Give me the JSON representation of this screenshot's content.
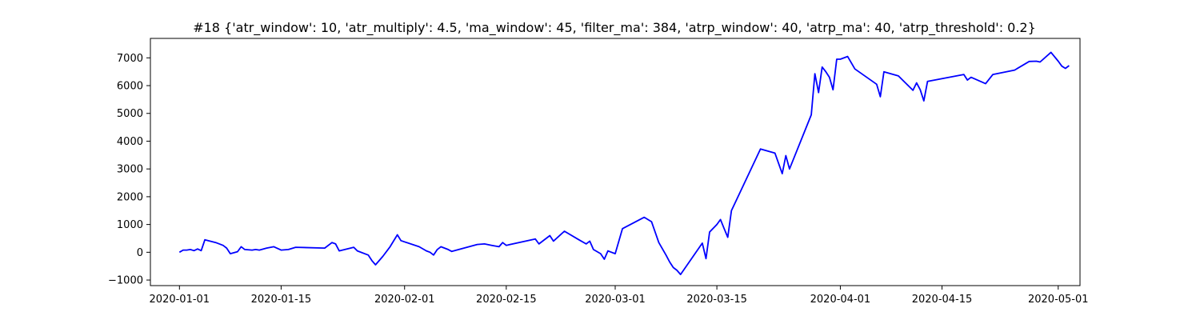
{
  "chart_data": {
    "type": "line",
    "title": "#18 {'atr_window': 10, 'atr_multiply': 4.5, 'ma_window': 45, 'filter_ma': 384, 'atrp_window': 40, 'atrp_ma': 40, 'atrp_threshold': 0.2}",
    "xlabel": "",
    "ylabel": "",
    "xlim": [
      "2019-12-28",
      "2020-05-04"
    ],
    "ylim": [
      -1200,
      7700
    ],
    "x_ticks": [
      "2020-01-01",
      "2020-01-15",
      "2020-02-01",
      "2020-02-15",
      "2020-03-01",
      "2020-03-15",
      "2020-04-01",
      "2020-04-15",
      "2020-05-01"
    ],
    "y_ticks": [
      -1000,
      0,
      1000,
      2000,
      3000,
      4000,
      5000,
      6000,
      7000
    ],
    "grid": false,
    "legend": "none",
    "series": [
      {
        "color": "#0000ff",
        "points": [
          [
            "2020-01-01",
            0
          ],
          [
            "2020-01-01T12",
            80
          ],
          [
            "2020-01-02",
            80
          ],
          [
            "2020-01-02T12",
            100
          ],
          [
            "2020-01-03",
            60
          ],
          [
            "2020-01-03T12",
            120
          ],
          [
            "2020-01-04",
            60
          ],
          [
            "2020-01-04T12",
            450
          ],
          [
            "2020-01-06",
            350
          ],
          [
            "2020-01-07",
            250
          ],
          [
            "2020-01-07T12",
            150
          ],
          [
            "2020-01-08",
            -50
          ],
          [
            "2020-01-09",
            20
          ],
          [
            "2020-01-09T12",
            200
          ],
          [
            "2020-01-10",
            100
          ],
          [
            "2020-01-11",
            80
          ],
          [
            "2020-01-11T12",
            100
          ],
          [
            "2020-01-12",
            80
          ],
          [
            "2020-01-13",
            150
          ],
          [
            "2020-01-14",
            200
          ],
          [
            "2020-01-15",
            80
          ],
          [
            "2020-01-16",
            100
          ],
          [
            "2020-01-17",
            180
          ],
          [
            "2020-01-21",
            150
          ],
          [
            "2020-01-22",
            350
          ],
          [
            "2020-01-22T12",
            300
          ],
          [
            "2020-01-23",
            50
          ],
          [
            "2020-01-25",
            180
          ],
          [
            "2020-01-25T12",
            50
          ],
          [
            "2020-01-27",
            -100
          ],
          [
            "2020-01-27T12",
            -300
          ],
          [
            "2020-01-28",
            -450
          ],
          [
            "2020-01-29",
            -150
          ],
          [
            "2020-01-30",
            200
          ],
          [
            "2020-01-31",
            630
          ],
          [
            "2020-01-31T12",
            420
          ],
          [
            "2020-02-03",
            200
          ],
          [
            "2020-02-04",
            50
          ],
          [
            "2020-02-04T12",
            0
          ],
          [
            "2020-02-05",
            -100
          ],
          [
            "2020-02-05T12",
            100
          ],
          [
            "2020-02-06",
            200
          ],
          [
            "2020-02-07",
            100
          ],
          [
            "2020-02-07T12",
            30
          ],
          [
            "2020-02-11",
            280
          ],
          [
            "2020-02-12",
            300
          ],
          [
            "2020-02-13",
            250
          ],
          [
            "2020-02-14",
            200
          ],
          [
            "2020-02-14T12",
            350
          ],
          [
            "2020-02-15",
            250
          ],
          [
            "2020-02-19",
            480
          ],
          [
            "2020-02-19T12",
            300
          ],
          [
            "2020-02-21",
            600
          ],
          [
            "2020-02-21T12",
            400
          ],
          [
            "2020-02-23",
            760
          ],
          [
            "2020-02-25",
            450
          ],
          [
            "2020-02-26",
            300
          ],
          [
            "2020-02-26T12",
            400
          ],
          [
            "2020-02-27",
            100
          ],
          [
            "2020-02-28",
            -50
          ],
          [
            "2020-02-28T12",
            -250
          ],
          [
            "2020-02-29",
            50
          ],
          [
            "2020-03-01",
            -50
          ],
          [
            "2020-03-02",
            850
          ],
          [
            "2020-03-05",
            1260
          ],
          [
            "2020-03-06",
            1100
          ],
          [
            "2020-03-07",
            350
          ],
          [
            "2020-03-08",
            -100
          ],
          [
            "2020-03-08T12",
            -350
          ],
          [
            "2020-03-09",
            -550
          ],
          [
            "2020-03-09T12",
            -650
          ],
          [
            "2020-03-10",
            -800
          ],
          [
            "2020-03-13",
            330
          ],
          [
            "2020-03-13T12",
            -230
          ],
          [
            "2020-03-14",
            730
          ],
          [
            "2020-03-15",
            1000
          ],
          [
            "2020-03-15T12",
            1180
          ],
          [
            "2020-03-16",
            850
          ],
          [
            "2020-03-16T12",
            540
          ],
          [
            "2020-03-17",
            1500
          ],
          [
            "2020-03-21",
            3720
          ],
          [
            "2020-03-23",
            3570
          ],
          [
            "2020-03-24",
            2830
          ],
          [
            "2020-03-24T12",
            3480
          ],
          [
            "2020-03-25",
            3000
          ],
          [
            "2020-03-28",
            4950
          ],
          [
            "2020-03-28T12",
            6430
          ],
          [
            "2020-03-29",
            5750
          ],
          [
            "2020-03-29T12",
            6670
          ],
          [
            "2020-03-30",
            6500
          ],
          [
            "2020-03-30T12",
            6300
          ],
          [
            "2020-03-31",
            5850
          ],
          [
            "2020-03-31T12",
            6950
          ],
          [
            "2020-04-01",
            6950
          ],
          [
            "2020-04-02",
            7050
          ],
          [
            "2020-04-03",
            6600
          ],
          [
            "2020-04-06",
            6050
          ],
          [
            "2020-04-06T12",
            5600
          ],
          [
            "2020-04-07",
            6500
          ],
          [
            "2020-04-09",
            6350
          ],
          [
            "2020-04-11",
            5830
          ],
          [
            "2020-04-11T12",
            6100
          ],
          [
            "2020-04-12",
            5850
          ],
          [
            "2020-04-12T12",
            5450
          ],
          [
            "2020-04-13",
            6150
          ],
          [
            "2020-04-18",
            6400
          ],
          [
            "2020-04-18T12",
            6200
          ],
          [
            "2020-04-19",
            6300
          ],
          [
            "2020-04-21",
            6070
          ],
          [
            "2020-04-22",
            6400
          ],
          [
            "2020-04-25",
            6560
          ],
          [
            "2020-04-27",
            6870
          ],
          [
            "2020-04-28",
            6880
          ],
          [
            "2020-04-28T12",
            6850
          ],
          [
            "2020-04-30",
            7200
          ],
          [
            "2020-05-01",
            6880
          ],
          [
            "2020-05-01T12",
            6700
          ],
          [
            "2020-05-02",
            6620
          ],
          [
            "2020-05-02T12",
            6720
          ]
        ]
      }
    ]
  }
}
